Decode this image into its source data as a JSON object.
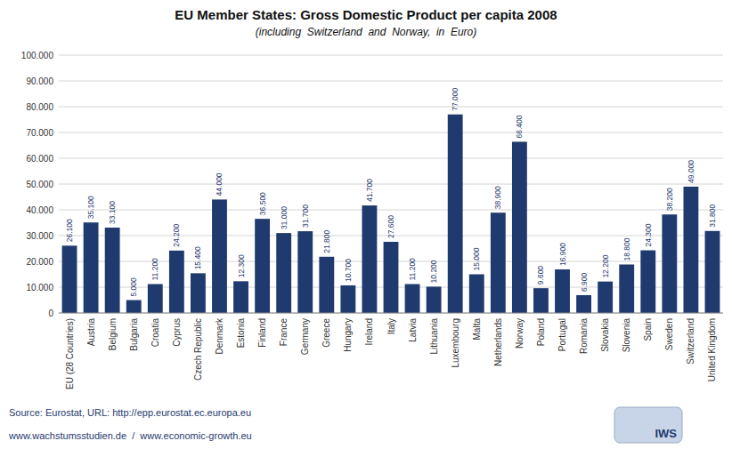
{
  "chart_data": {
    "type": "bar",
    "title": "EU Member States: Gross Domestic Product per capita 2008",
    "subtitle": "(including  Switzerland  and  Norway,  in  Euro)",
    "annotations": [
      "Source: Eurostat, URL: http://epp.eurostat.ec.europa.eu",
      "www.wachstumsstudien.de  /  www.economic-growth.eu",
      "IWS"
    ],
    "categories": [
      "EU (28 Countries)",
      "Austria",
      "Belgium",
      "Bulgaria",
      "Croatia",
      "Cyprus",
      "Czech Republic",
      "Denmark",
      "Estonia",
      "Finland",
      "France",
      "Germany",
      "Greece",
      "Hungary",
      "Ireland",
      "Italy",
      "Latvia",
      "Lithuania",
      "Luxembourg",
      "Malta",
      "Netherlands",
      "Norway",
      "Poland",
      "Portugal",
      "Romania",
      "Slovakia",
      "Slovenia",
      "Spain",
      "Sweden",
      "Switzerland",
      "United Kingdom"
    ],
    "values": [
      26100,
      35100,
      33100,
      5000,
      11200,
      24200,
      15400,
      44000,
      12300,
      36500,
      31000,
      31700,
      21800,
      10700,
      41700,
      27600,
      11200,
      10200,
      77000,
      15000,
      38900,
      66400,
      9600,
      16900,
      6900,
      12200,
      18800,
      24300,
      38200,
      49000,
      31800
    ],
    "value_labels": [
      "26.100",
      "35.100",
      "33.100",
      "5.000",
      "11.200",
      "24.200",
      "15.400",
      "44.000",
      "12.300",
      "36.500",
      "31.000",
      "31.700",
      "21.800",
      "10.700",
      "41.700",
      "27.600",
      "11.200",
      "10.200",
      "77.000",
      "15.000",
      "38.900",
      "66.400",
      "9.600",
      "16.900",
      "6.900",
      "12.200",
      "18.800",
      "24.300",
      "38.200",
      "49.000",
      "31.800"
    ],
    "color": "#1F3A6E",
    "data_labels": true,
    "ylim": [
      0,
      100000
    ],
    "yticks": [
      0,
      {
        "value": 10000,
        "label": "10.000"
      },
      {
        "value": 20000,
        "label": "20.000"
      },
      {
        "value": 30000,
        "label": "30.000"
      },
      {
        "value": 40000,
        "label": "40.000"
      },
      {
        "value": 50000,
        "label": "50.000"
      },
      {
        "value": 60000,
        "label": "60.000"
      },
      {
        "value": 70000,
        "label": "70.000"
      },
      {
        "value": 80000,
        "label": "80.000"
      },
      {
        "value": 90000,
        "label": "90.000"
      },
      {
        "value": 100000,
        "label": "100.000"
      }
    ],
    "grid": true
  }
}
